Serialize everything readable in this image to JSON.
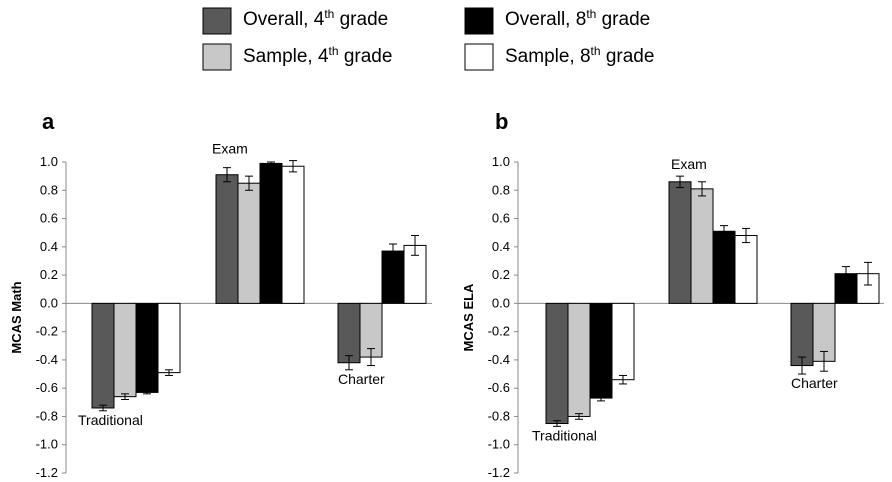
{
  "legend": {
    "items": [
      {
        "label": "Overall, 4",
        "sup": "th",
        "suffix": " grade",
        "color": "#595959"
      },
      {
        "label": "Sample, 4",
        "sup": "th",
        "suffix": " grade",
        "color": "#c8c8c8"
      },
      {
        "label": "Overall, 8",
        "sup": "th",
        "suffix": " grade",
        "color": "#000000"
      },
      {
        "label": "Sample, 8",
        "sup": "th",
        "suffix": " grade",
        "color": "#ffffff"
      }
    ]
  },
  "chart_data": [
    {
      "type": "bar",
      "panel": "a",
      "ylabel": "MCAS Math",
      "ylim": [
        -1.2,
        1.0
      ],
      "yticks": [
        "1.0",
        "0.8",
        "0.6",
        "0.4",
        "0.2",
        "0.0",
        "-0.2",
        "-0.4",
        "-0.6",
        "-0.8",
        "-1.0",
        "-1.2"
      ],
      "categories": [
        "Traditional",
        "Exam",
        "Charter"
      ],
      "series": [
        {
          "name": "Overall, 4th grade",
          "values": [
            -0.74,
            0.91,
            -0.42
          ],
          "errors": [
            0.02,
            0.05,
            0.05
          ]
        },
        {
          "name": "Sample, 4th grade",
          "values": [
            -0.66,
            0.85,
            -0.38
          ],
          "errors": [
            0.02,
            0.05,
            0.06
          ]
        },
        {
          "name": "Overall, 8th grade",
          "values": [
            -0.63,
            0.99,
            0.37
          ],
          "errors": [
            0.01,
            0.01,
            0.05
          ]
        },
        {
          "name": "Sample, 8th grade",
          "values": [
            -0.49,
            0.97,
            0.41
          ],
          "errors": [
            0.02,
            0.04,
            0.07
          ]
        }
      ]
    },
    {
      "type": "bar",
      "panel": "b",
      "ylabel": "MCAS ELA",
      "ylim": [
        -1.2,
        1.0
      ],
      "yticks": [
        "1.0",
        "0.8",
        "0.6",
        "0.4",
        "0.2",
        "0.0",
        "-0.2",
        "-0.4",
        "-0.6",
        "-0.8",
        "-1.0",
        "-1.2"
      ],
      "categories": [
        "Traditional",
        "Exam",
        "Charter"
      ],
      "series": [
        {
          "name": "Overall, 4th grade",
          "values": [
            -0.85,
            0.86,
            -0.44
          ],
          "errors": [
            0.02,
            0.04,
            0.06
          ]
        },
        {
          "name": "Sample, 4th grade",
          "values": [
            -0.8,
            0.81,
            -0.41
          ],
          "errors": [
            0.02,
            0.05,
            0.07
          ]
        },
        {
          "name": "Overall, 8th grade",
          "values": [
            -0.67,
            0.51,
            0.21
          ],
          "errors": [
            0.02,
            0.04,
            0.05
          ]
        },
        {
          "name": "Sample, 8th grade",
          "values": [
            -0.54,
            0.48,
            0.21
          ],
          "errors": [
            0.03,
            0.05,
            0.08
          ]
        }
      ]
    }
  ]
}
